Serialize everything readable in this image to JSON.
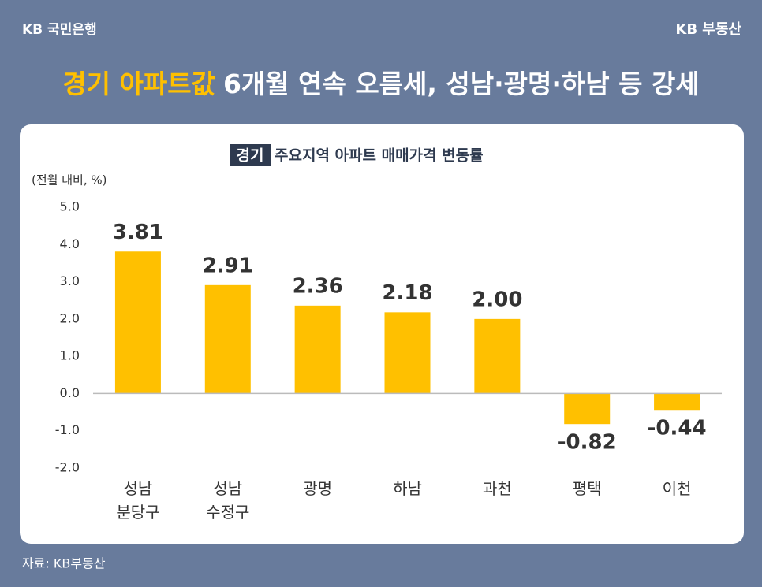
{
  "header": {
    "logo": "KB 국민은행",
    "brand": "KB 부동산"
  },
  "title": {
    "highlight": "경기 아파트값",
    "rest": "6개월 연속 오름세, 성남·광명·하남 등 강세"
  },
  "chart_data": {
    "type": "bar",
    "title_tag": "경기",
    "title": "주요지역 아파트 매매가격 변동률",
    "y_label": "(전월 대비, %)",
    "categories": [
      "성남 분당구",
      "성남 수정구",
      "광명",
      "하남",
      "과천",
      "평택",
      "이천"
    ],
    "values": [
      3.81,
      2.91,
      2.36,
      2.18,
      2.0,
      -0.82,
      -0.44
    ],
    "value_labels": [
      "3.81",
      "2.91",
      "2.36",
      "2.18",
      "2.00",
      "-0.82",
      "-0.44"
    ],
    "color": "#ffc000",
    "ylim": [
      -2,
      5
    ],
    "yticks": [
      {
        "value": 5,
        "label": "5.0"
      },
      {
        "value": 4,
        "label": "4.0"
      },
      {
        "value": 3,
        "label": "3.0"
      },
      {
        "value": 2,
        "label": "2.0"
      },
      {
        "value": 1,
        "label": "1.0"
      },
      {
        "value": 0,
        "label": "0.0"
      },
      {
        "value": -1,
        "label": "-1.0"
      },
      {
        "value": -2,
        "label": "-2.0"
      }
    ],
    "grid": false
  },
  "source": "자료: KB부동산"
}
